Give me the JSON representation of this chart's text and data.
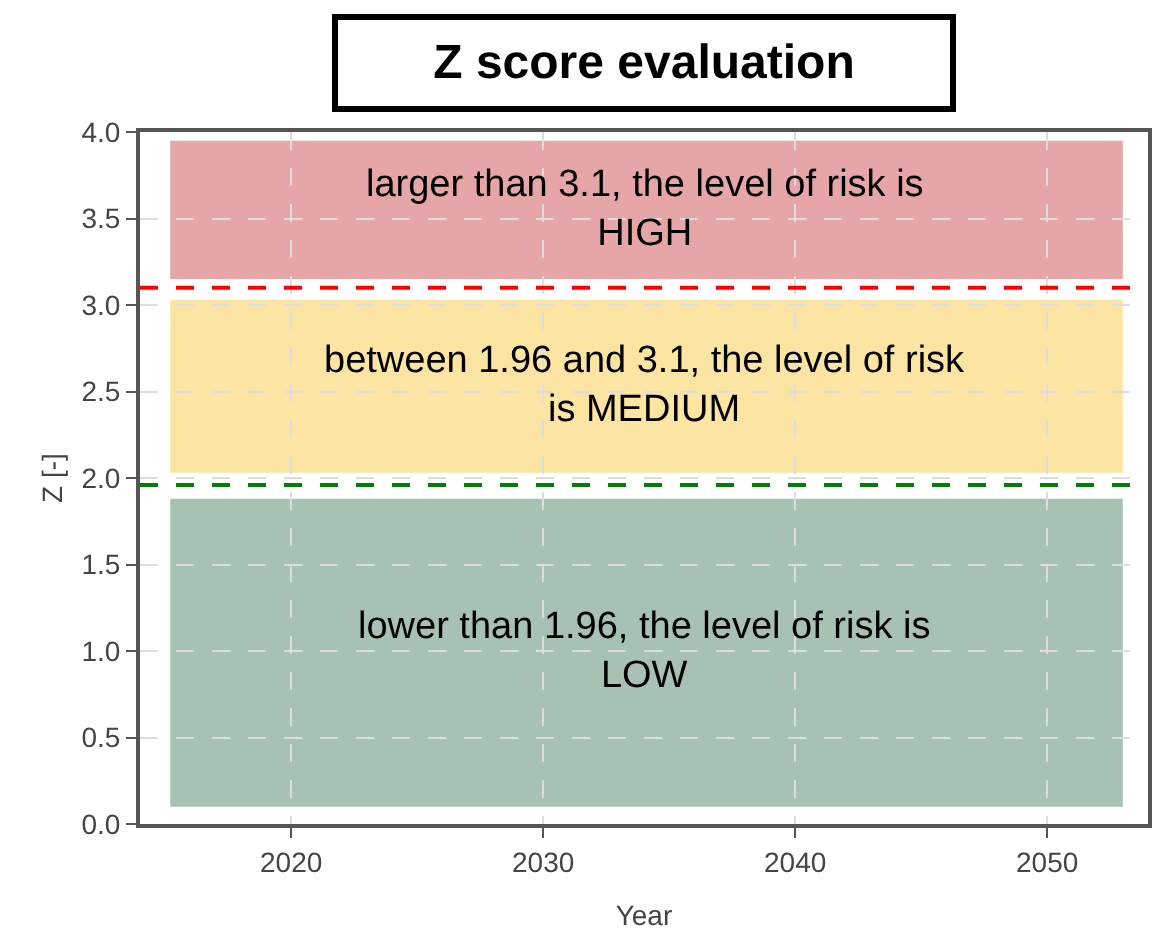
{
  "chart_data": {
    "type": "line",
    "title": "Z score evaluation",
    "xlabel": "Year",
    "ylabel": "Z [-]",
    "xlim": [
      2014,
      2054
    ],
    "xticks": [
      2020,
      2030,
      2040,
      2050
    ],
    "ylim": [
      0,
      4
    ],
    "yticks": [
      {
        "value": 0,
        "label": "0.0"
      },
      {
        "value": 0.5,
        "label": "0.5"
      },
      {
        "value": 1,
        "label": "1.0"
      },
      {
        "value": 1.5,
        "label": "1.5"
      },
      {
        "value": 2,
        "label": "2.0"
      },
      {
        "value": 2.5,
        "label": "2.5"
      },
      {
        "value": 3,
        "label": "3.0"
      },
      {
        "value": 3.5,
        "label": "3.5"
      },
      {
        "value": 4,
        "label": "4.0"
      }
    ],
    "grid": true,
    "ref_lines": [
      {
        "axis": "y",
        "value": 3.1,
        "color": "#ff0000",
        "line_style": "dashed"
      },
      {
        "axis": "y",
        "value": 1.96,
        "color": "#008000",
        "line_style": "dashed"
      }
    ],
    "bands": [
      {
        "axis": "y",
        "from": 3.15,
        "to": 3.95,
        "label": "larger than 3.1, the level of risk is HIGH",
        "color": "#e6a5a6"
      },
      {
        "axis": "y",
        "from": 2.03,
        "to": 3.03,
        "label": "between 1.96 and 3.1, the level of risk is MEDIUM",
        "color": "#fce5a2"
      },
      {
        "axis": "y",
        "from": 0.1,
        "to": 1.88,
        "label": "lower than 1.96, the level of risk is LOW",
        "color": "#a7c2b3"
      }
    ]
  }
}
